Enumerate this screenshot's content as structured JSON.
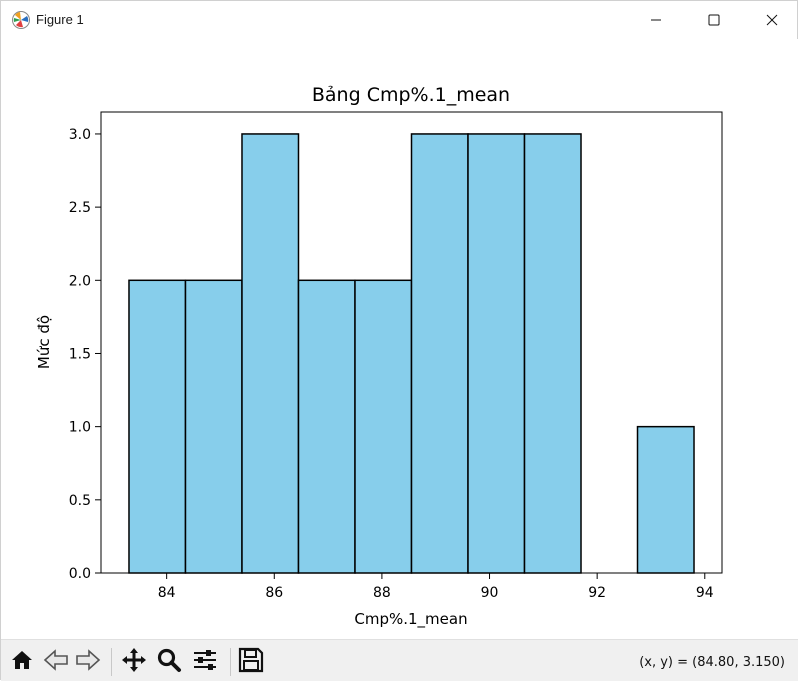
{
  "window": {
    "title": "Figure 1",
    "controls": {
      "minimize_icon": "minimize-icon",
      "maximize_icon": "maximize-icon",
      "close_icon": "close-icon"
    }
  },
  "toolbar": {
    "icons": [
      "home-icon",
      "back-icon",
      "forward-icon",
      "pan-icon",
      "zoom-icon",
      "configure-subplots-icon",
      "save-icon"
    ],
    "coords": "(x, y) = (84.80, 3.150)"
  },
  "chart_data": {
    "type": "bar",
    "title": "Bảng Cmp%.1_mean",
    "xlabel": "Cmp%.1_mean",
    "ylabel": "Mức độ",
    "bins": [
      {
        "x0": 83.3,
        "x1": 84.35,
        "value": 2
      },
      {
        "x0": 84.35,
        "x1": 85.4,
        "value": 2
      },
      {
        "x0": 85.4,
        "x1": 86.45,
        "value": 3
      },
      {
        "x0": 86.45,
        "x1": 87.5,
        "value": 2
      },
      {
        "x0": 87.5,
        "x1": 88.55,
        "value": 2
      },
      {
        "x0": 88.55,
        "x1": 89.6,
        "value": 3
      },
      {
        "x0": 89.6,
        "x1": 90.65,
        "value": 3
      },
      {
        "x0": 90.65,
        "x1": 91.7,
        "value": 3
      },
      {
        "x0": 91.7,
        "x1": 92.75,
        "value": 0
      },
      {
        "x0": 92.75,
        "x1": 93.8,
        "value": 1
      }
    ],
    "xlim": [
      82.78,
      94.32
    ],
    "ylim": [
      0,
      3.15
    ],
    "xticks": [
      84,
      86,
      88,
      90,
      92,
      94
    ],
    "yticks": [
      0.0,
      0.5,
      1.0,
      1.5,
      2.0,
      2.5,
      3.0
    ],
    "bar_color": "#87ceeb",
    "edge_color": "#000000",
    "grid": false
  }
}
